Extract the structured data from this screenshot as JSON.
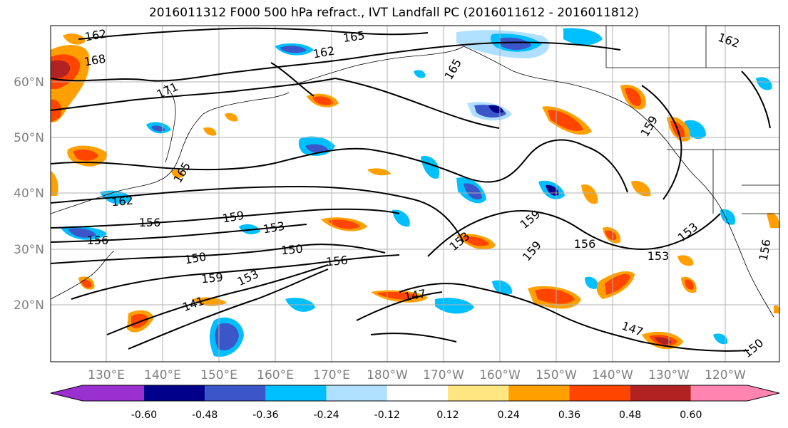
{
  "title": "2016011312 F000 500 hPa refract., IVT Landfall PC (2016011612 - 2016011812)",
  "lat_labels": [
    "60°N",
    "50°N",
    "40°N",
    "30°N",
    "20°N"
  ],
  "lon_labels": [
    "130°E",
    "140°E",
    "150°E",
    "160°E",
    "170°E",
    "180°W",
    "170°W",
    "160°W",
    "150°W",
    "140°W",
    "130°W",
    "120°W"
  ],
  "contour_labels": [
    "162",
    "168",
    "171",
    "165",
    "162",
    "165",
    "162",
    "159",
    "165",
    "162",
    "156",
    "159",
    "153",
    "156",
    "150",
    "150",
    "159",
    "153",
    "141",
    "147",
    "156",
    "153",
    "159",
    "159",
    "156",
    "153",
    "147",
    "153",
    "150",
    "156"
  ],
  "colorbar": {
    "colors": [
      "#9b30d0",
      "#00008b",
      "#3a56c8",
      "#00bfff",
      "#b0e0ff",
      "#ffffff",
      "#ffe680",
      "#ffa000",
      "#ff4500",
      "#b22222",
      "#ff85b0"
    ],
    "tick_labels": [
      "-0.60",
      "-0.48",
      "-0.36",
      "-0.24",
      "-0.12",
      "0.12",
      "0.24",
      "0.36",
      "0.48",
      "0.60"
    ]
  }
}
